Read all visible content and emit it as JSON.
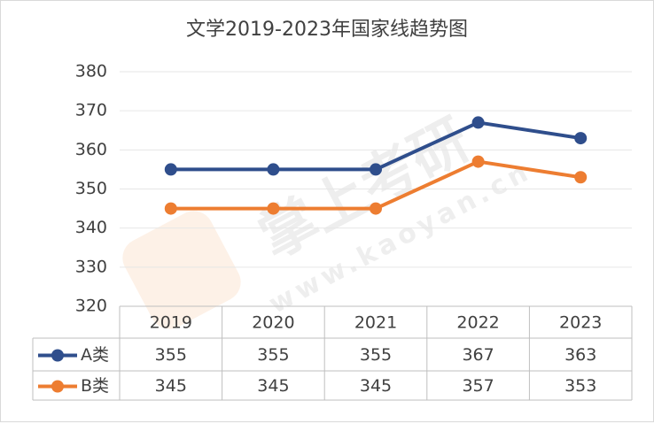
{
  "chart_data": {
    "type": "line",
    "title": "文学2019-2023年国家线趋势图",
    "categories": [
      "2019",
      "2020",
      "2021",
      "2022",
      "2023"
    ],
    "series": [
      {
        "name": "A类",
        "color": "#2f4e8c",
        "values": [
          355,
          355,
          355,
          367,
          363
        ]
      },
      {
        "name": "B类",
        "color": "#ed7d31",
        "values": [
          345,
          345,
          345,
          357,
          353
        ]
      }
    ],
    "ylim": [
      320,
      380
    ],
    "yticks": [
      320,
      330,
      340,
      350,
      360,
      370,
      380
    ],
    "grid": true,
    "watermark": "掌上考研",
    "watermark_url": "www.kaoyan.cn"
  }
}
